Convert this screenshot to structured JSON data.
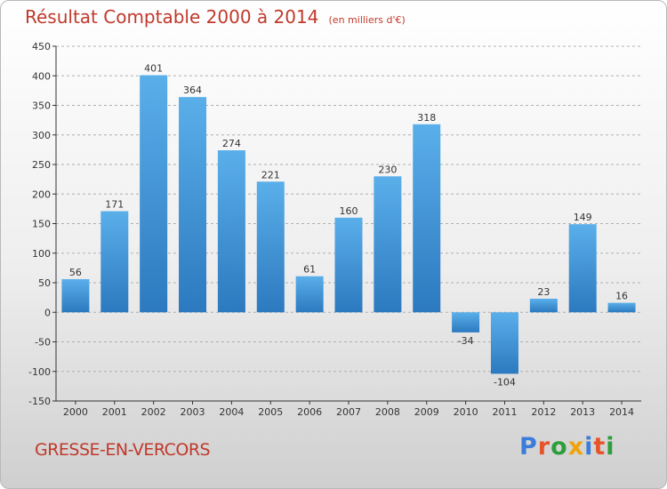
{
  "title": "Résultat Comptable 2000 à 2014",
  "subtitle": "(en milliers d'€)",
  "place": "GRESSE-EN-VERCORS",
  "brand": {
    "text": "Proxiti",
    "letter_colors": [
      "#3b7dd8",
      "#e6542b",
      "#2e9e3a",
      "#f0a30a",
      "#3b7dd8",
      "#e6542b",
      "#2e9e3a"
    ]
  },
  "colors": {
    "bar_top": "#5aafea",
    "bar_bottom": "#2c79bf",
    "title": "#c0392b",
    "axis": "#333333",
    "grid": "#b0b0b0"
  },
  "chart_data": {
    "type": "bar",
    "title": "Résultat Comptable 2000 à 2014",
    "subtitle": "(en milliers d'€)",
    "xlabel": "",
    "ylabel": "",
    "categories": [
      "2000",
      "2001",
      "2002",
      "2003",
      "2004",
      "2005",
      "2006",
      "2007",
      "2008",
      "2009",
      "2010",
      "2011",
      "2012",
      "2013",
      "2014"
    ],
    "values": [
      56,
      171,
      401,
      364,
      274,
      221,
      61,
      160,
      230,
      318,
      -34,
      -104,
      23,
      149,
      16
    ],
    "ylim": [
      -150,
      450
    ],
    "yticks": [
      -150,
      -100,
      -50,
      0,
      50,
      100,
      150,
      200,
      250,
      300,
      350,
      400,
      450
    ],
    "grid": true
  }
}
